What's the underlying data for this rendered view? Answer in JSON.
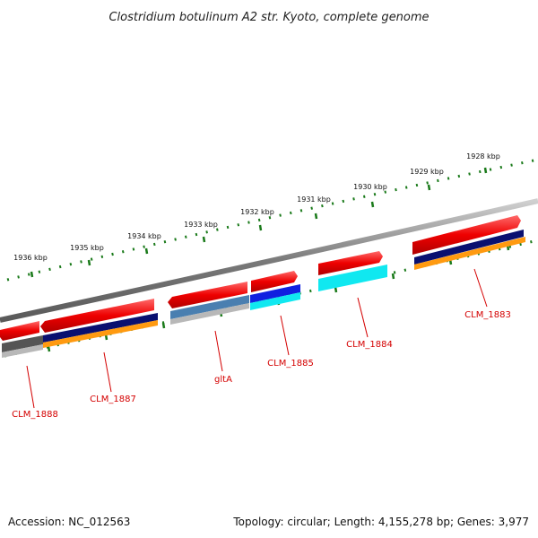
{
  "title": "Clostridium botulinum A2 str. Kyoto, complete genome",
  "footer": {
    "accession": "Accession: NC_012563",
    "summary": "Topology: circular; Length: 4,155,278 bp; Genes: 3,977"
  },
  "scale_labels": [
    "1936 kbp",
    "1935 kbp",
    "1934 kbp",
    "1933 kbp",
    "1932 kbp",
    "1931 kbp",
    "1930 kbp",
    "1929 kbp",
    "1928 kbp"
  ],
  "gene_labels": [
    "CLM_1888",
    "CLM_1887",
    "gltA",
    "CLM_1885",
    "CLM_1884",
    "CLM_1883"
  ],
  "colors": {
    "gene_red": "#ee0000",
    "backbone": "#8a8a8a",
    "scale_green": "#1a7a1a",
    "label_red": "#d40000",
    "navy": "#0a1070",
    "orange": "#ff9a10",
    "cyan": "#10e8f0",
    "blue": "#1020e0",
    "steel_blue": "#4a7fb0",
    "dark_gray": "#555555",
    "light_gray": "#b8b8b8"
  }
}
